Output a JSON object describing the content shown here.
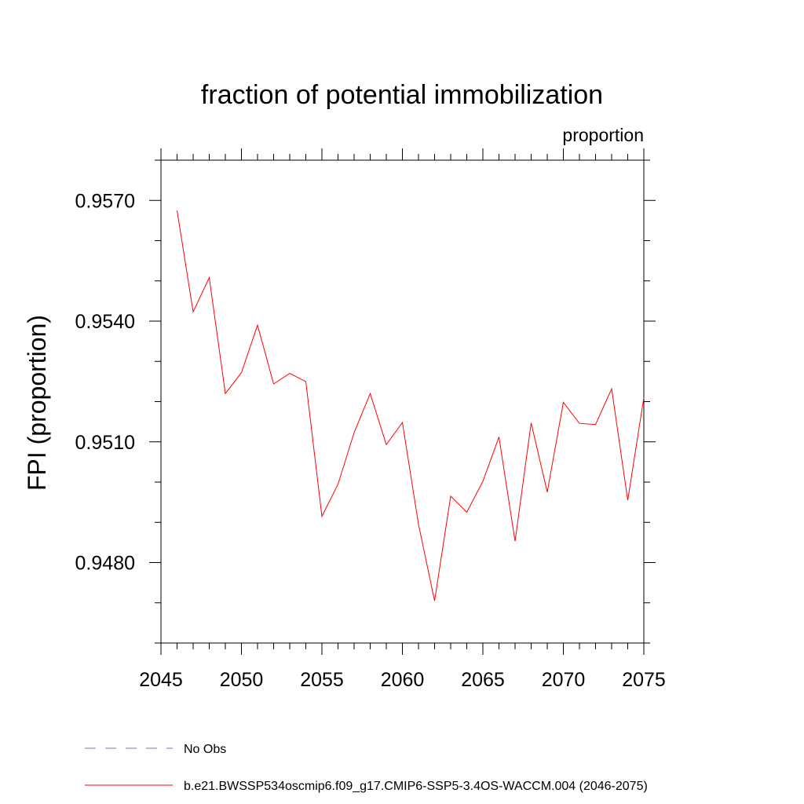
{
  "chart_data": {
    "type": "line",
    "title": "fraction of potential immobilization",
    "subtitle_right": "proportion",
    "xlabel": "",
    "ylabel": "FPI  (proportion)",
    "xlim": [
      2045,
      2075
    ],
    "ylim": [
      0.946,
      0.958
    ],
    "x_ticks": [
      2045,
      2050,
      2055,
      2060,
      2065,
      2070,
      2075
    ],
    "x_tick_labels": [
      "2045",
      "2050",
      "2055",
      "2060",
      "2065",
      "2070",
      "2075"
    ],
    "y_ticks": [
      0.948,
      0.951,
      0.954,
      0.957
    ],
    "y_tick_labels": [
      "0.9480",
      "0.9510",
      "0.9540",
      "0.9570"
    ],
    "y_minor_step": 0.001,
    "x_minor_step": 1,
    "grid": false,
    "legend_position": "bottom",
    "series": [
      {
        "name": "b.e21.BWSSP534oscmip6.f09_g17.CMIP6-SSP5-3.4OS-WACCM.004 (2046-2075)",
        "color": "#ff0000",
        "style": "solid",
        "x": [
          2046,
          2047,
          2048,
          2049,
          2050,
          2051,
          2052,
          2053,
          2054,
          2055,
          2056,
          2057,
          2058,
          2059,
          2060,
          2061,
          2062,
          2063,
          2064,
          2065,
          2066,
          2067,
          2068,
          2069,
          2070,
          2071,
          2072,
          2073,
          2074,
          2075
        ],
        "values": [
          0.95675,
          0.95423,
          0.95508,
          0.9522,
          0.95272,
          0.9539,
          0.95244,
          0.9527,
          0.9525,
          0.94915,
          0.94995,
          0.95123,
          0.9522,
          0.95093,
          0.95148,
          0.94895,
          0.94705,
          0.94965,
          0.94925,
          0.95002,
          0.95112,
          0.94853,
          0.95147,
          0.94975,
          0.95198,
          0.95146,
          0.95143,
          0.95232,
          0.94955,
          0.9521
        ]
      },
      {
        "name": "No Obs",
        "color": "#7f6fbf",
        "style": "dashed",
        "x": [],
        "values": []
      }
    ]
  }
}
